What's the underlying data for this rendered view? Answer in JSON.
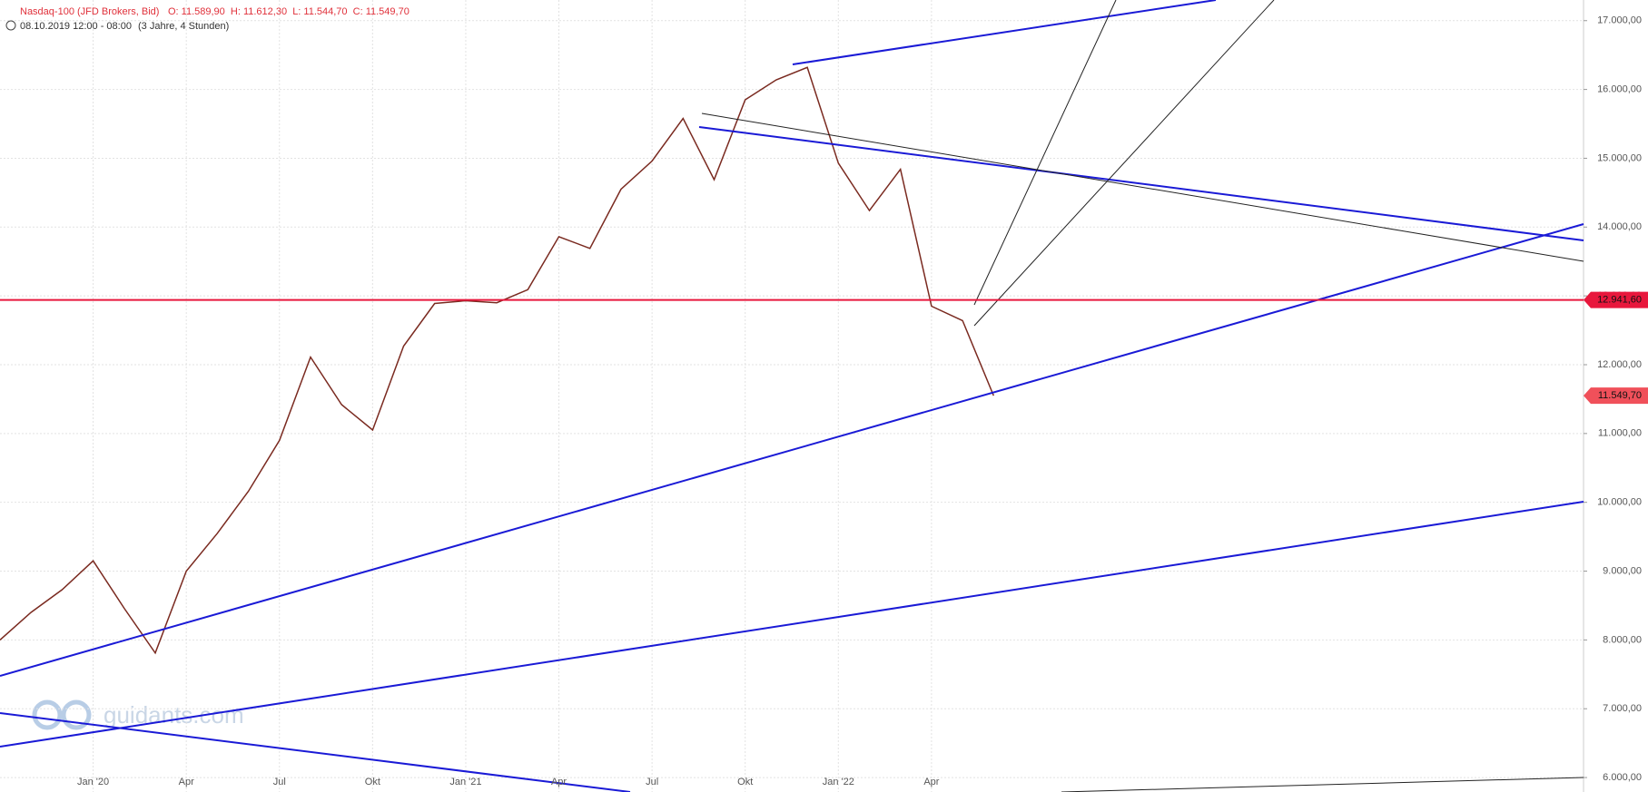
{
  "header": {
    "symbol": "Nasdaq-100 (JFD Brokers, Bid)",
    "ohlc": "O: 11.589,90  H: 11.612,30  L: 11.544,70  C: 11.549,70",
    "range": "08.10.2019 12:00 - 08:00",
    "span": "(3 Jahre, 4 Stunden)",
    "watermark": "guidants.com"
  },
  "chart_data": {
    "type": "line",
    "x": [
      "2019-10",
      "2019-11",
      "2019-12",
      "2020-01",
      "2020-02",
      "2020-03",
      "2020-04",
      "2020-05",
      "2020-06",
      "2020-07",
      "2020-08",
      "2020-09",
      "2020-10",
      "2020-11",
      "2020-12",
      "2021-01",
      "2021-02",
      "2021-03",
      "2021-04",
      "2021-05",
      "2021-06",
      "2021-07",
      "2021-08",
      "2021-09",
      "2021-10",
      "2021-11",
      "2021-12",
      "2022-01",
      "2022-02",
      "2022-03",
      "2022-04",
      "2022-05",
      "2022-06"
    ],
    "series": [
      {
        "name": "Nasdaq-100",
        "color": "#7a2a20",
        "values": [
          8000,
          8400,
          8730,
          9150,
          8460,
          7810,
          9000,
          9550,
          10160,
          10900,
          12110,
          11420,
          11050,
          12270,
          12890,
          12930,
          12900,
          13090,
          13860,
          13690,
          14550,
          14960,
          15580,
          14690,
          15850,
          16140,
          16320,
          14930,
          14240,
          14840,
          12850,
          12640,
          11549.7
        ]
      }
    ],
    "xlim": [
      "2019-10",
      "2024-01"
    ],
    "xticks": [
      {
        "value": "2020-01",
        "label": "Jan '20"
      },
      {
        "value": "2020-04",
        "label": "Apr"
      },
      {
        "value": "2020-07",
        "label": "Jul"
      },
      {
        "value": "2020-10",
        "label": "Okt"
      },
      {
        "value": "2021-01",
        "label": "Jan '21"
      },
      {
        "value": "2021-04",
        "label": "Apr"
      },
      {
        "value": "2021-07",
        "label": "Jul"
      },
      {
        "value": "2021-10",
        "label": "Okt"
      },
      {
        "value": "2022-01",
        "label": "Jan '22"
      },
      {
        "value": "2022-04",
        "label": "Apr"
      }
    ],
    "ylim": [
      5790,
      17300
    ],
    "yticks": [
      {
        "value": 6000,
        "label": "6.000,00"
      },
      {
        "value": 7000,
        "label": "7.000,00"
      },
      {
        "value": 8000,
        "label": "8.000,00"
      },
      {
        "value": 9000,
        "label": "9.000,00"
      },
      {
        "value": 10000,
        "label": "10.000,00"
      },
      {
        "value": 11000,
        "label": "11.000,00"
      },
      {
        "value": 12000,
        "label": "12.000,00"
      },
      {
        "value": 13000,
        "label": "13.000,00"
      },
      {
        "value": 14000,
        "label": "14.000,00"
      },
      {
        "value": 15000,
        "label": "15.000,00"
      },
      {
        "value": 16000,
        "label": "16.000,00"
      },
      {
        "value": 17000,
        "label": "17.000,00"
      }
    ],
    "grid": true,
    "hline": {
      "value": 12941.6,
      "label": "12.941,60",
      "color": "#e8173c"
    },
    "last_price": {
      "value": 11549.7,
      "label": "11.549,70",
      "color": "#f0505a"
    }
  }
}
